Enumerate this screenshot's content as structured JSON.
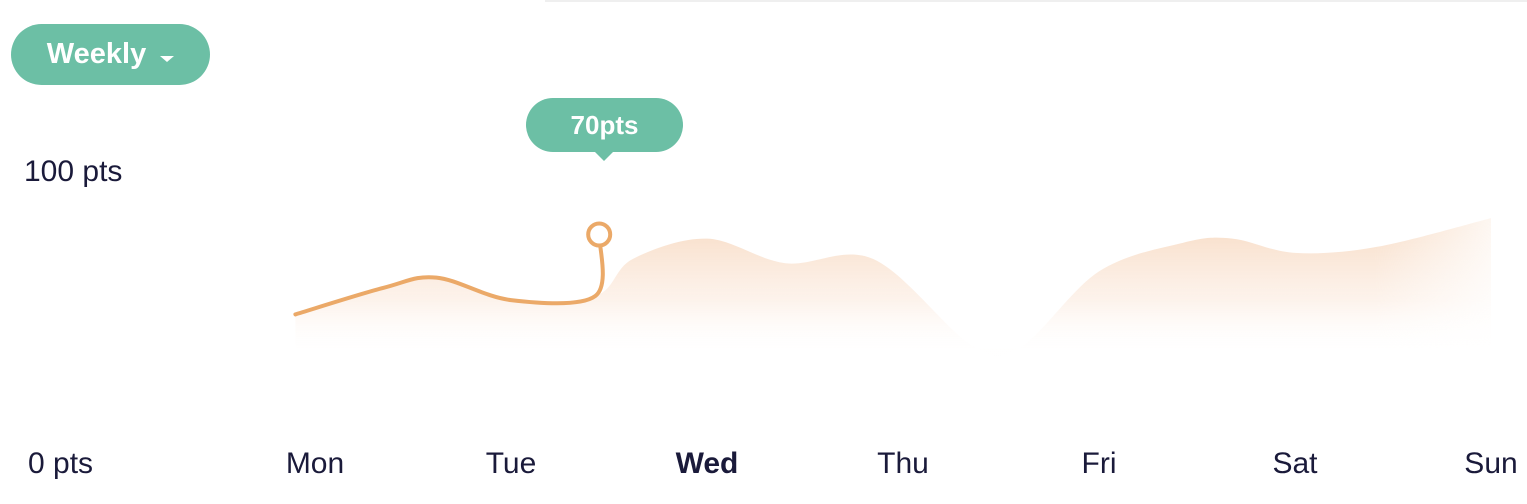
{
  "period_select": {
    "label": "Weekly",
    "icon": "chevron-down-icon"
  },
  "chart_data": {
    "type": "area",
    "title": "",
    "xlabel": "",
    "ylabel": "",
    "y_tick_labels": [
      "100 pts",
      "0 pts"
    ],
    "ylim": [
      0,
      100
    ],
    "categories": [
      "Mon",
      "Tue",
      "Wed",
      "Thu",
      "Fri",
      "Sat",
      "Sun"
    ],
    "selected_category": "Wed",
    "x": [
      -0.1,
      0.35,
      0.62,
      1.0,
      1.43,
      1.62,
      2.0,
      2.4,
      2.85,
      3.35,
      3.6,
      4.0,
      4.43,
      4.68,
      5.0,
      5.42,
      6.0
    ],
    "values": [
      31,
      44,
      49,
      38,
      40,
      58,
      68,
      56,
      58,
      16,
      15,
      52,
      66,
      68,
      61,
      64,
      78
    ],
    "highlight": {
      "x": 1.45,
      "value": 70,
      "label": "70pts"
    },
    "grid": false,
    "legend": "none",
    "colors": {
      "line": "#eba968",
      "fill": "#f7dbc4",
      "accent": "#6cbfa5",
      "text": "#1a1a3a"
    }
  }
}
